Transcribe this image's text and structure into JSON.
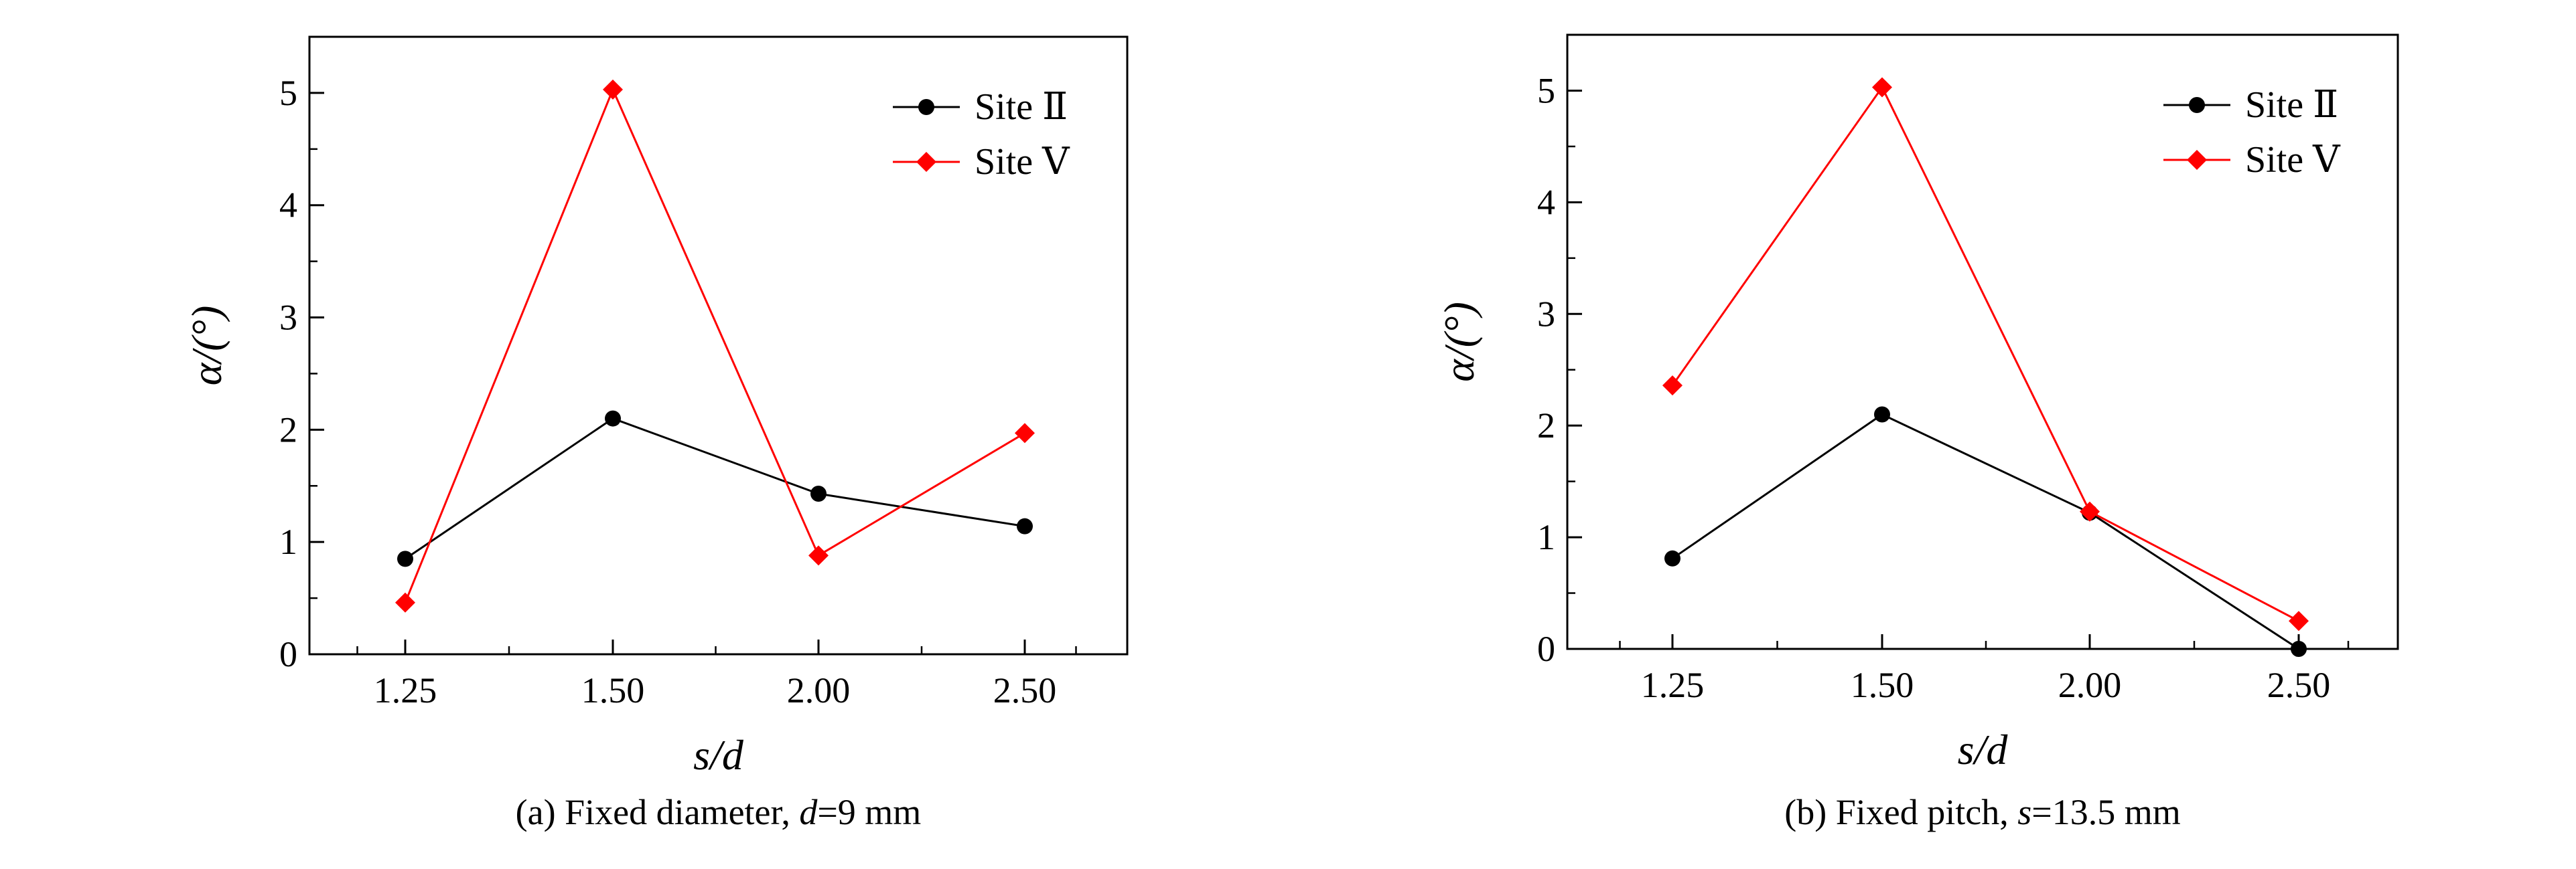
{
  "chart_data": [
    {
      "type": "line",
      "caption_prefix": "(a) Fixed diameter, ",
      "caption_var": "d",
      "caption_suffix": "=9 mm",
      "xlabel": "s/d",
      "ylabel": "α/(°)",
      "categories": [
        "1.25",
        "1.50",
        "2.00",
        "2.50"
      ],
      "ylim": [
        0,
        5.5
      ],
      "yticks": [
        0,
        1,
        2,
        3,
        4,
        5
      ],
      "series": [
        {
          "name": "Site Ⅱ",
          "color": "#000000",
          "marker": "circle",
          "values": [
            0.85,
            2.1,
            1.43,
            1.14
          ]
        },
        {
          "name": "Site Ⅴ",
          "color": "#ff0000",
          "marker": "diamond",
          "values": [
            0.46,
            5.03,
            0.88,
            1.97
          ]
        }
      ],
      "legend": "top-right"
    },
    {
      "type": "line",
      "caption_prefix": "(b) Fixed pitch, ",
      "caption_var": "s",
      "caption_suffix": "=13.5 mm",
      "xlabel": "s/d",
      "ylabel": "α/(°)",
      "categories": [
        "1.25",
        "1.50",
        "2.00",
        "2.50"
      ],
      "ylim": [
        0,
        5.5
      ],
      "yticks": [
        0,
        1,
        2,
        3,
        4,
        5
      ],
      "series": [
        {
          "name": "Site Ⅱ",
          "color": "#000000",
          "marker": "circle",
          "values": [
            0.81,
            2.1,
            1.22,
            0.0
          ]
        },
        {
          "name": "Site Ⅴ",
          "color": "#ff0000",
          "marker": "diamond",
          "values": [
            2.36,
            5.03,
            1.23,
            0.25
          ]
        }
      ],
      "legend": "top-right"
    }
  ]
}
